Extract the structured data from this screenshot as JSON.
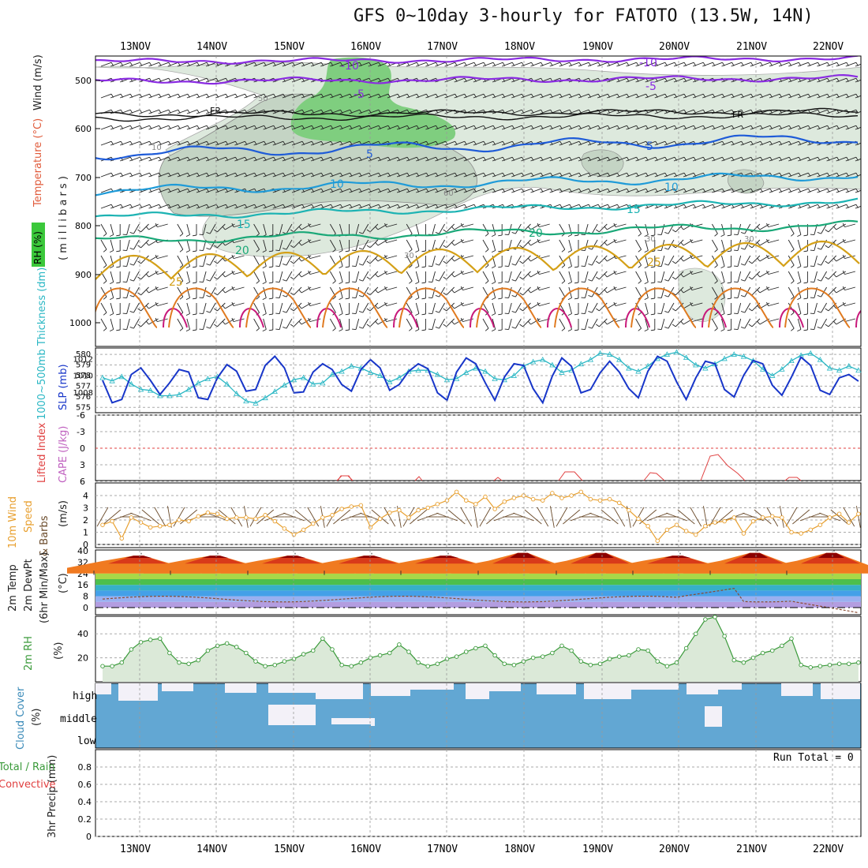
{
  "title": "GFS 0~10day 3-hourly for FATOTO (13.5W, 14N)",
  "dates": [
    "13NOV",
    "14NOV",
    "15NOV",
    "16NOV",
    "17NOV",
    "18NOV",
    "19NOV",
    "20NOV",
    "21NOV",
    "22NOV"
  ],
  "colors": {
    "grid": "#9a9a9a",
    "cloud": "#62a7d3",
    "rhGreen": "#5dbb5d",
    "tempDark": "#8b0000"
  },
  "panels": {
    "upper": {
      "ylabel_rh": "RH (%)",
      "ylabel_temp": "Temperature (°C)",
      "ylabel_wind": "Wind (m/s)",
      "ylabel_p": "( m i l l i b a r s )",
      "yticks": [
        "500",
        "600",
        "700",
        "800",
        "900",
        "1000"
      ],
      "contour_labels": [
        "-10",
        "-5",
        "FR",
        "5",
        "10",
        "15",
        "20",
        "25",
        "50",
        "30",
        "60",
        "10",
        "-10",
        "-5",
        "FR",
        "5",
        "10",
        "15",
        "20",
        "25",
        "30",
        "30"
      ]
    },
    "slp": {
      "ylabel_thick": "1000~500mb Thickness (dm)",
      "ylabel_slp": "SLP (mb)",
      "yticks_left": [
        "575",
        "576",
        "577",
        "578",
        "579",
        "580"
      ],
      "yticks_right": [
        "1008",
        "1010",
        "1012"
      ]
    },
    "li": {
      "ylabel_li": "Lifted Index",
      "ylabel_cape": "CAPE (J/kg)",
      "yticks": [
        "-6",
        "-3",
        "0",
        "3",
        "6"
      ]
    },
    "wind10": {
      "ylabel1": "10m Wind",
      "ylabel2": "Speed",
      "ylabel3": "& Barbs",
      "unit": "(m/s)",
      "yticks": [
        "0",
        "1",
        "2",
        "3",
        "4"
      ]
    },
    "temp2m": {
      "ylabel1": "2m Temp",
      "ylabel2": "2m DewPt",
      "ylabel3": "(6hr Min/Max)",
      "unit": "(°C)",
      "yticks": [
        "0",
        "8",
        "16",
        "24",
        "32",
        "40"
      ]
    },
    "rh2m": {
      "ylabel": "2m RH",
      "unit": "(%)",
      "yticks": [
        "20",
        "40"
      ]
    },
    "cloud": {
      "ylabel": "Cloud Cover",
      "unit": "(%)",
      "levels": [
        "high",
        "middle",
        "low"
      ]
    },
    "precip": {
      "ylabel1": "Total / Rain",
      "ylabel2": "Convective",
      "ylabel3": "3hr Precip (mm)",
      "run_total": "Run Total = 0",
      "yticks": [
        "0",
        "0.2",
        "0.4",
        "0.6",
        "0.8"
      ]
    }
  },
  "chart_data": [
    {
      "type": "line",
      "title": "Sea Level Pressure and 1000-500mb Thickness",
      "x_unit": "3-hourly steps from 12NOV 12Z",
      "series": [
        {
          "name": "SLP (mb)",
          "values": [
            1009.5,
            1006.8,
            1007.2,
            1010.2,
            1011,
            1009.5,
            1007.8,
            1009.2,
            1010.8,
            1010.5,
            1007.4,
            1007.2,
            1009.8,
            1011.4,
            1010.6,
            1008.2,
            1008.4,
            1011.3,
            1012.4,
            1011,
            1008,
            1008.1,
            1010.5,
            1011.5,
            1010.8,
            1009,
            1008.2,
            1010.8,
            1012,
            1011,
            1008.3,
            1009,
            1010.6,
            1011.5,
            1010.9,
            1008,
            1007.1,
            1010.5,
            1012.2,
            1011.5,
            1009.2,
            1007.1,
            1009.9,
            1011.5,
            1011.3,
            1008.5,
            1006.8,
            1010,
            1012.2,
            1011.2,
            1008,
            1008.4,
            1010.4,
            1011.8,
            1010.5,
            1008.5,
            1007.4,
            1010.6,
            1012.4,
            1011.8,
            1009.3,
            1007.2,
            1009.8,
            1011.8,
            1011.5,
            1008.4,
            1007.5,
            1010.1,
            1011.9,
            1011.5,
            1008.9,
            1007.7,
            1009.9,
            1012.3,
            1011.3,
            1008.3,
            1007.8,
            1009.8,
            1010.2,
            1009.4
          ]
        },
        {
          "name": "1000~500mb Thickness (dm)",
          "values": [
            577.8,
            577.5,
            577.9,
            577.2,
            576.7,
            576.6,
            576.1,
            576.1,
            576.2,
            576.7,
            577.3,
            577.7,
            577.9,
            577.2,
            576.3,
            575.6,
            575.4,
            575.9,
            576.5,
            577.1,
            577.6,
            577.8,
            577.2,
            577.3,
            578.1,
            578.4,
            578.9,
            578.7,
            578.3,
            578.0,
            577.4,
            577.8,
            578.4,
            578.5,
            578.5,
            578.1,
            577.6,
            577.7,
            578.3,
            578.7,
            578.4,
            577.7,
            577.6,
            578.0,
            578.9,
            579.3,
            579.5,
            579.0,
            578.3,
            578.5,
            579.1,
            579.5,
            580.1,
            580.0,
            579.5,
            578.7,
            578.4,
            578.9,
            579.6,
            580.0,
            580.2,
            579.7,
            579.0,
            578.7,
            579.1,
            579.6,
            580.0,
            579.8,
            579.4,
            578.6,
            578.0,
            578.6,
            579.4,
            579.9,
            580.1,
            579.5,
            578.7,
            578.5,
            578.9,
            578.5
          ]
        }
      ]
    },
    {
      "type": "line",
      "title": "10m Wind Speed",
      "series": [
        {
          "name": "10m Wind Speed (m/s)",
          "values": [
            1.6,
            1.9,
            0.5,
            2.2,
            1.8,
            1.4,
            1.5,
            1.6,
            2.0,
            1.9,
            2.3,
            2.6,
            2.5,
            2.1,
            2.2,
            2.2,
            2.1,
            2.4,
            1.9,
            1.3,
            0.8,
            1.2,
            1.7,
            2.2,
            2.4,
            2.9,
            3.1,
            3.2,
            1.4,
            2.1,
            2.6,
            2.8,
            2.2,
            2.8,
            3.0,
            3.3,
            3.6,
            4.3,
            3.6,
            3.3,
            3.9,
            2.9,
            3.5,
            3.8,
            4.0,
            3.7,
            3.6,
            4.2,
            3.8,
            4.0,
            4.3,
            3.7,
            3.6,
            3.7,
            3.4,
            2.8,
            2.1,
            1.5,
            0.3,
            1.2,
            1.6,
            1.1,
            0.8,
            1.5,
            1.8,
            1.9,
            2.2,
            0.9,
            1.9,
            2.2,
            2.3,
            2.2,
            1.0,
            0.9,
            1.2,
            1.6,
            2.2,
            2.5,
            1.8,
            2.5
          ]
        }
      ]
    },
    {
      "type": "line",
      "title": "2m RH",
      "series": [
        {
          "name": "2m RH (%)",
          "values": [
            13,
            13,
            16,
            27,
            33,
            35,
            36,
            24,
            16,
            15,
            18,
            26,
            30,
            32,
            29,
            24,
            17,
            13,
            14,
            17,
            19,
            23,
            26,
            36,
            27,
            14,
            13,
            16,
            20,
            22,
            24,
            31,
            25,
            16,
            13,
            15,
            19,
            21,
            25,
            28,
            30,
            22,
            15,
            14,
            17,
            20,
            21,
            24,
            30,
            26,
            17,
            14,
            15,
            19,
            21,
            22,
            27,
            26,
            17,
            13,
            16,
            28,
            40,
            52,
            54,
            38,
            18,
            16,
            20,
            24,
            26,
            30,
            36,
            14,
            12,
            13,
            14,
            15,
            15,
            16
          ]
        }
      ]
    },
    {
      "type": "line",
      "title": "3hr Precip",
      "ylim": [
        0,
        1
      ],
      "series": [
        {
          "name": "3hr Precip (mm)",
          "values": [
            0
          ]
        }
      ]
    }
  ]
}
